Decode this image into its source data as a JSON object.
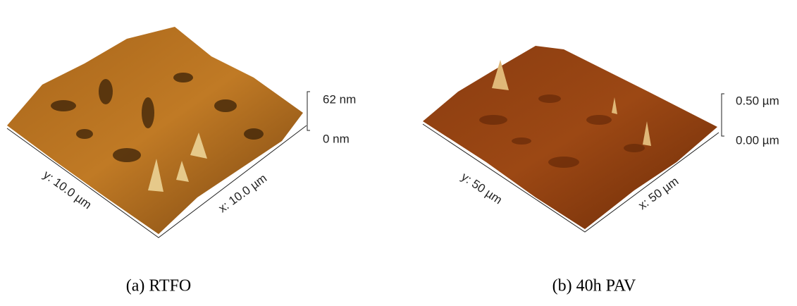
{
  "panels": [
    {
      "scale_top": "62 nm",
      "scale_bottom": "0 nm",
      "y_axis": "y: 10.0 µm",
      "x_axis": "x: 10.0 µm",
      "caption": "(a) RTFO"
    },
    {
      "scale_top": "0.50 µm",
      "scale_bottom": "0.00 µm",
      "y_axis": "y: 50 µm",
      "x_axis": "x: 50 µm",
      "caption": "(b) 40h PAV"
    }
  ]
}
